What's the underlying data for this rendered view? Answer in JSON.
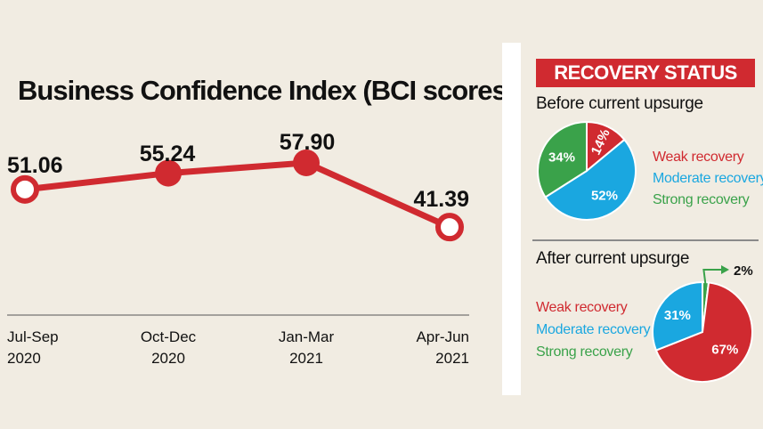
{
  "colors": {
    "line": "#d02a30",
    "weak": "#d02a30",
    "moderate": "#1aa7e0",
    "strong": "#3aa24a",
    "background": "#f1ece2"
  },
  "chart_data": [
    {
      "type": "line",
      "title": "Business Confidence Index (BCI scores)",
      "categories": [
        [
          "Jul-Sep",
          "2020"
        ],
        [
          "Oct-Dec",
          "2020"
        ],
        [
          "Jan-Mar",
          "2021"
        ],
        [
          "Apr-Jun",
          "2021"
        ]
      ],
      "values": [
        51.06,
        55.24,
        57.9,
        41.39
      ],
      "value_labels": [
        "51.06",
        "55.24",
        "57.90",
        "41.39"
      ],
      "markers": [
        "hollow",
        "filled",
        "filled",
        "hollow"
      ],
      "ylim": [
        38,
        62
      ],
      "grid": false
    },
    {
      "type": "pie",
      "title": "Before current upsurge",
      "slices": [
        {
          "label": "Weak recovery",
          "value": 14,
          "text": "14%"
        },
        {
          "label": "Moderate recovery",
          "value": 52,
          "text": "52%"
        },
        {
          "label": "Strong recovery",
          "value": 34,
          "text": "34%"
        }
      ]
    },
    {
      "type": "pie",
      "title": "After current upsurge",
      "slices": [
        {
          "label": "Weak recovery",
          "value": 67,
          "text": "67%"
        },
        {
          "label": "Moderate recovery",
          "value": 31,
          "text": "31%"
        },
        {
          "label": "Strong recovery",
          "value": 2,
          "text": "2%"
        }
      ]
    }
  ],
  "panel": {
    "banner": "RECOVERY STATUS",
    "before_title": "Before current upsurge",
    "after_title": "After current upsurge",
    "legend": {
      "weak": "Weak recovery",
      "moderate": "Moderate recovery",
      "strong": "Strong recovery"
    }
  }
}
